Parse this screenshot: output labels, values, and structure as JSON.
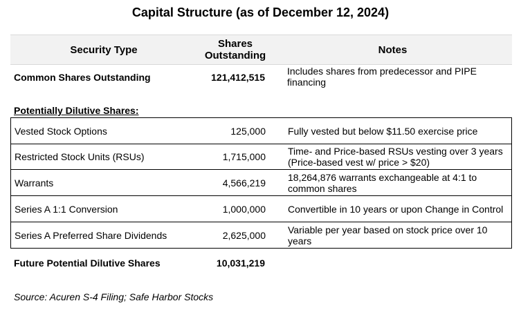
{
  "title": "Capital Structure (as of December 12, 2024)",
  "table": {
    "header": [
      "Security Type",
      "Shares Outstanding",
      "Notes"
    ],
    "common": [
      "Common Shares Outstanding",
      "121,412,515",
      "Includes shares from predecessor and PIPE financing"
    ],
    "section_label": "Potentially Dilutive Shares:",
    "rows": [
      [
        "Vested Stock Options",
        "125,000",
        "Fully vested but below $11.50 exercise price"
      ],
      [
        "Restricted Stock Units (RSUs)",
        "1,715,000",
        "Time- and Price-based RSUs vesting over 3 years (Price-based vest w/ price > $20)"
      ],
      [
        "Warrants",
        "4,566,219",
        "18,264,876 warrants exchangeable at 4:1 to common shares"
      ],
      [
        "Series A 1:1 Conversion",
        "1,000,000",
        "Convertible in 10 years or upon Change in Control"
      ],
      [
        "Series A Preferred Share Dividends",
        "2,625,000",
        "Variable per year based on stock price over 10 years"
      ]
    ],
    "total": [
      "Future Potential Dilutive Shares",
      "10,031,219"
    ]
  },
  "source": "Source: Acuren S-4 Filing; Safe Harbor Stocks"
}
